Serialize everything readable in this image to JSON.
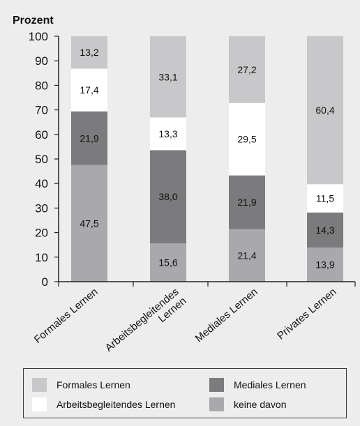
{
  "chart_data": {
    "type": "bar",
    "stacked": true,
    "ylabel": "Prozent",
    "ylim": [
      0,
      100
    ],
    "yticks": [
      0,
      10,
      20,
      30,
      40,
      50,
      60,
      70,
      80,
      90,
      100
    ],
    "grid": false,
    "legend_position": "bottom",
    "categories": [
      "Formales Lernen",
      "Arbeitsbegleitendes Lernen",
      "Mediales Lernen",
      "Privates Lernen"
    ],
    "series": [
      {
        "name": "keine davon",
        "values": [
          47.5,
          15.6,
          21.4,
          13.9
        ],
        "value_labels": [
          "47,5",
          "15,6",
          "21,4",
          "13,9"
        ],
        "color": "#a9a9ad"
      },
      {
        "name": "Mediales Lernen",
        "values": [
          21.9,
          38.0,
          21.9,
          14.3
        ],
        "value_labels": [
          "21,9",
          "38,0",
          "21,9",
          "14,3"
        ],
        "color": "#7b7b7d"
      },
      {
        "name": "Arbeitsbegleitendes Lernen",
        "values": [
          17.4,
          13.3,
          29.5,
          11.5
        ],
        "value_labels": [
          "17,4",
          "13,3",
          "29,5",
          "11,5"
        ],
        "color": "#ffffff"
      },
      {
        "name": "Formales Lernen",
        "values": [
          13.2,
          33.1,
          27.2,
          60.4
        ],
        "value_labels": [
          "13,2",
          "33,1",
          "27,2",
          "60,4"
        ],
        "color": "#c8c8ca"
      }
    ],
    "legend_order": [
      "Formales Lernen",
      "Mediales Lernen",
      "Arbeitsbegleitendes Lernen",
      "keine davon"
    ]
  }
}
